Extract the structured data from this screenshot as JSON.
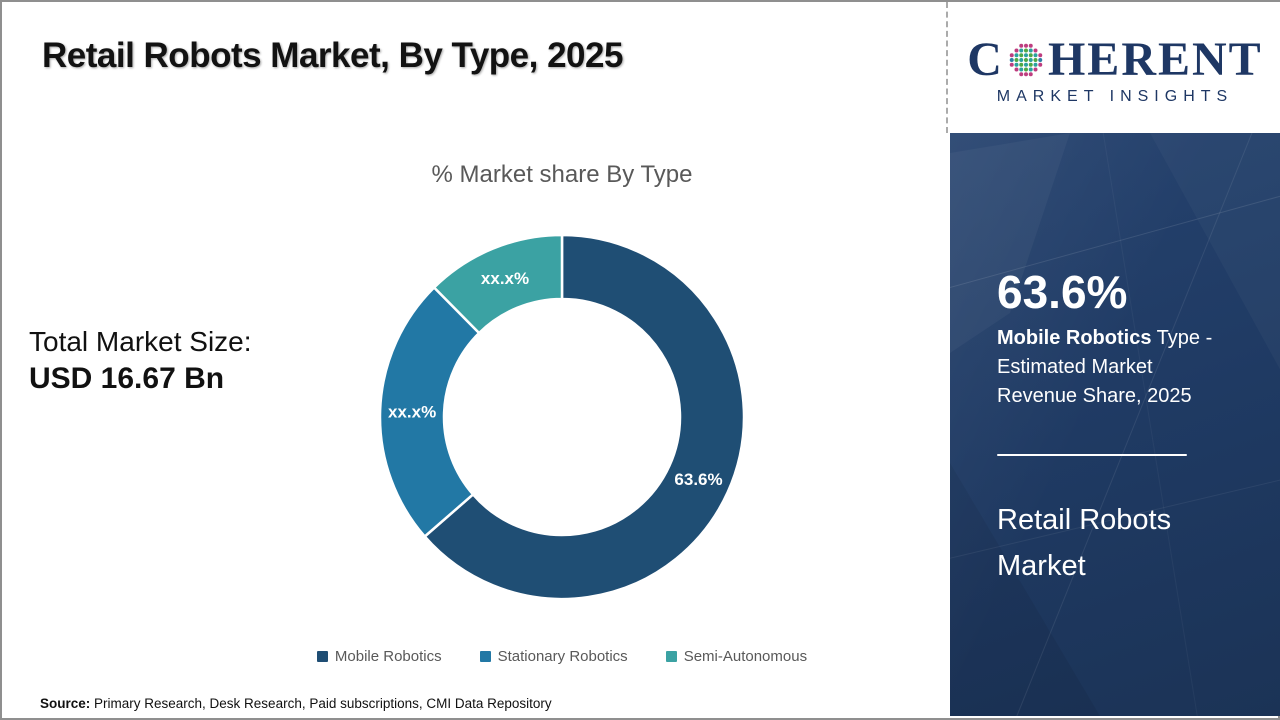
{
  "header": {
    "title": "Retail Robots Market, By Type, 2025"
  },
  "logo": {
    "part1": "C",
    "part2": "HERENT",
    "subtitle": "MARKET INSIGHTS",
    "brand_color": "#1E3764"
  },
  "left_stat": {
    "label": "Total Market Size:",
    "value": "USD 16.67 Bn"
  },
  "chart_data": {
    "type": "pie",
    "subtype": "donut",
    "title": "% Market share By Type",
    "categories": [
      "Mobile Robotics",
      "Stationary Robotics",
      "Semi-Autonomous"
    ],
    "values": [
      63.6,
      24.0,
      12.4
    ],
    "labels": [
      "63.6%",
      "xx.x%",
      "xx.x%"
    ],
    "colors": [
      "#1F4E74",
      "#2278A5",
      "#3BA2A3"
    ],
    "legend_position": "bottom",
    "start_angle_deg": 0,
    "direction": "clockwise"
  },
  "side_panel": {
    "stat_value": "63.6%",
    "stat_desc_bold": "Mobile Robotics",
    "stat_desc_rest": " Type - Estimated Market Revenue Share, 2025",
    "product": "Retail Robots Market",
    "bg_color": "#1F3A63"
  },
  "footer": {
    "source_label": "Source:",
    "source_text": " Primary Research, Desk Research, Paid subscriptions, CMI Data Repository"
  }
}
